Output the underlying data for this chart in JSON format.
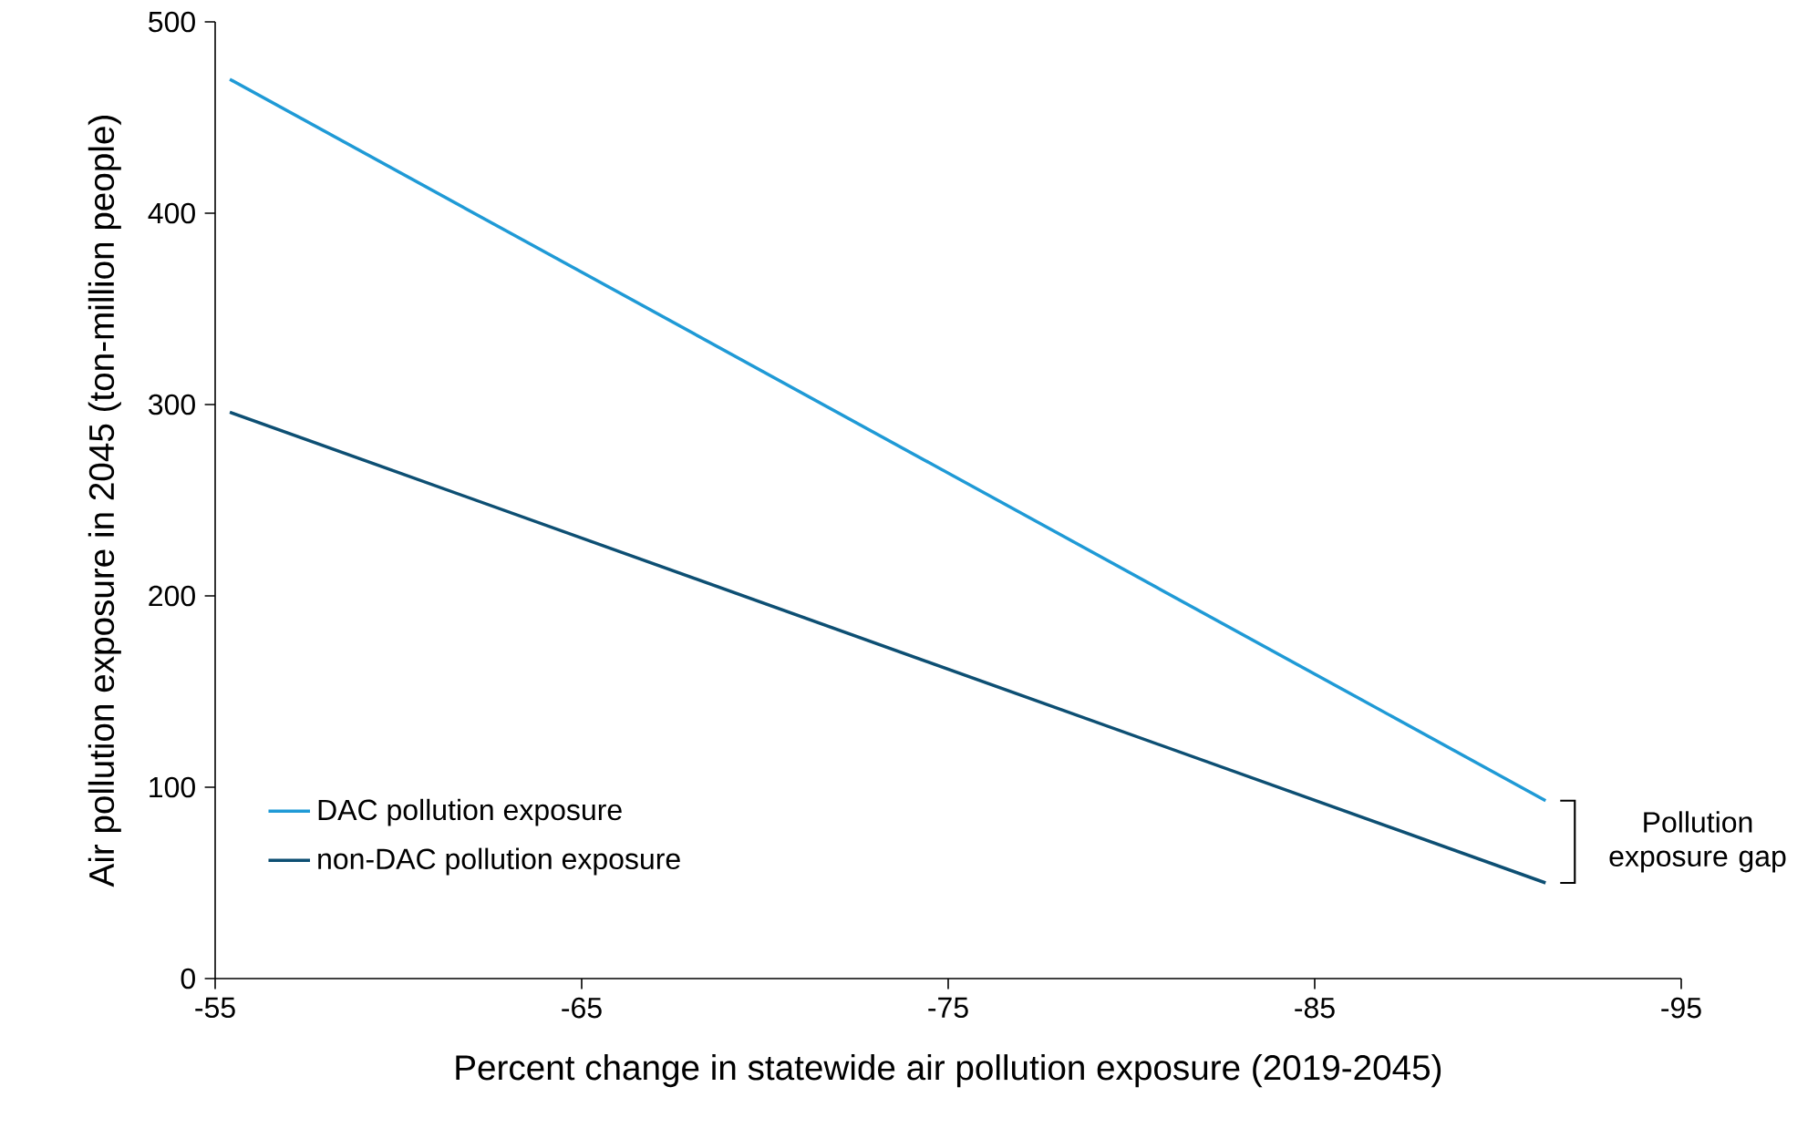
{
  "chart_data": {
    "type": "line",
    "xlabel": "Percent change in statewide air pollution exposure (2019-2045)",
    "ylabel": "Air pollution exposure in 2045 (ton-million people)",
    "xlim": [
      -55,
      -95
    ],
    "xticks": [
      -55,
      -65,
      -75,
      -85,
      -95
    ],
    "ylim": [
      0,
      500
    ],
    "yticks": [
      0,
      100,
      200,
      300,
      400,
      500
    ],
    "x": [
      -55.4,
      -91.3
    ],
    "series": [
      {
        "name": "DAC pollution exposure",
        "color": "#1f9ad6",
        "values": [
          470,
          93
        ]
      },
      {
        "name": "non-DAC pollution exposure",
        "color": "#0d4f73",
        "values": [
          296,
          50
        ]
      }
    ],
    "annotations": [
      "Pollution exposure gap"
    ],
    "legend": "bottom left",
    "grid": false,
    "marker": "none",
    "line_style": "solid"
  }
}
